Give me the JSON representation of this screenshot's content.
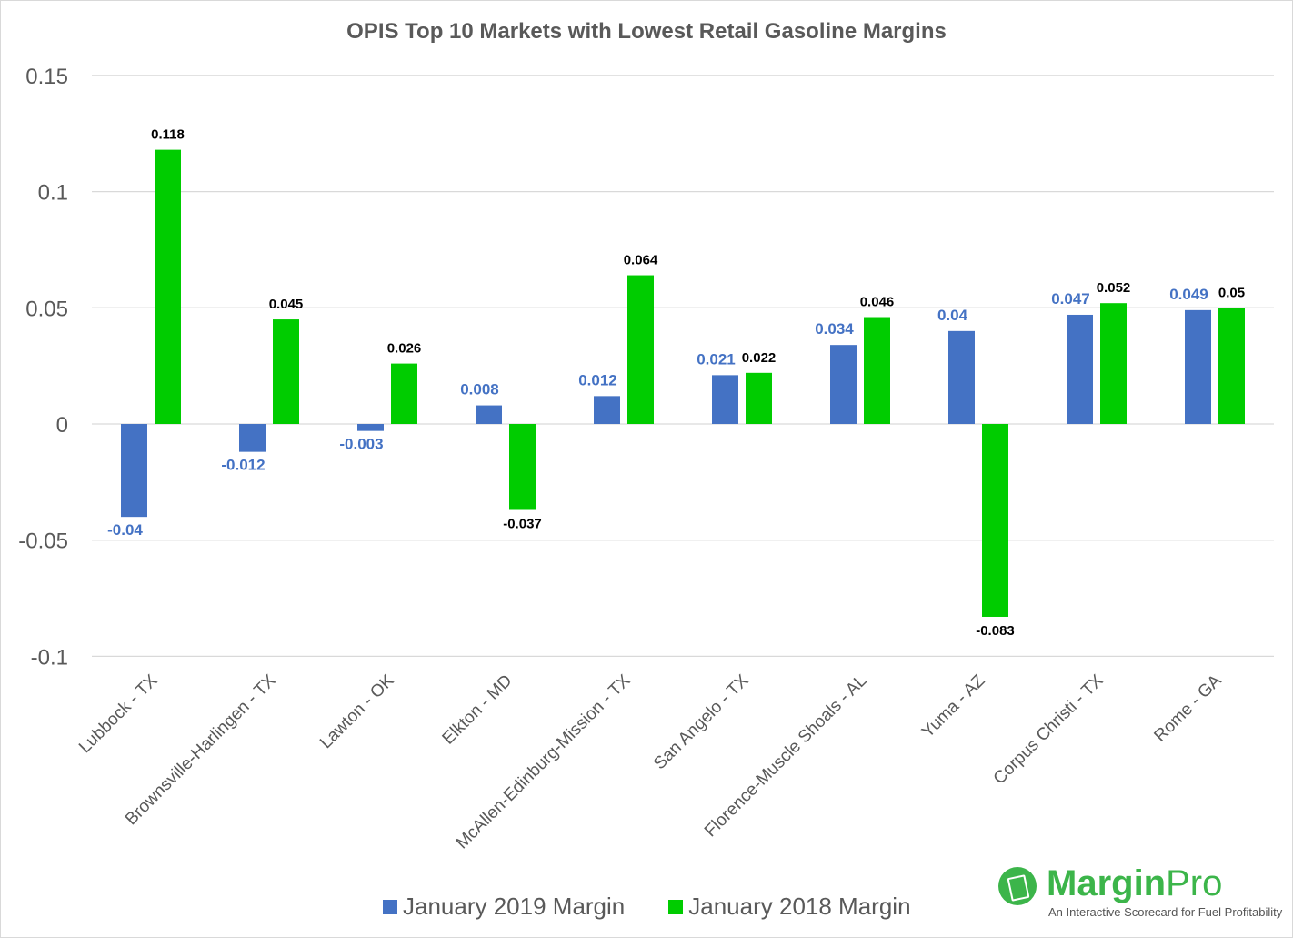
{
  "chart_data": {
    "type": "bar",
    "title": "OPIS Top 10 Markets with Lowest Retail Gasoline Margins",
    "categories": [
      "Lubbock - TX",
      "Brownsville-Harlingen - TX",
      "Lawton - OK",
      "Elkton - MD",
      "McAllen-Edinburg-Mission - TX",
      "San Angelo - TX",
      "Florence-Muscle Shoals - AL",
      "Yuma - AZ",
      "Corpus Christi - TX",
      "Rome - GA"
    ],
    "series": [
      {
        "name": "January 2019 Margin",
        "color": "#4472c4",
        "values": [
          -0.04,
          -0.012,
          -0.003,
          0.008,
          0.012,
          0.021,
          0.034,
          0.04,
          0.047,
          0.049
        ]
      },
      {
        "name": "January 2018 Margin",
        "color": "#00cc00",
        "values": [
          0.118,
          0.045,
          0.026,
          -0.037,
          0.064,
          0.022,
          0.046,
          -0.083,
          0.052,
          0.05
        ]
      }
    ],
    "ylim": [
      -0.1,
      0.15
    ],
    "yticks": [
      "0.15",
      "0.1",
      "0.05",
      "0",
      "-0.05",
      "-0.1"
    ],
    "grid": true,
    "legend": "bottom"
  },
  "logo": {
    "name_bold": "Margin",
    "name_light": "Pro",
    "tagline": "An Interactive Scorecard for Fuel Profitability"
  }
}
